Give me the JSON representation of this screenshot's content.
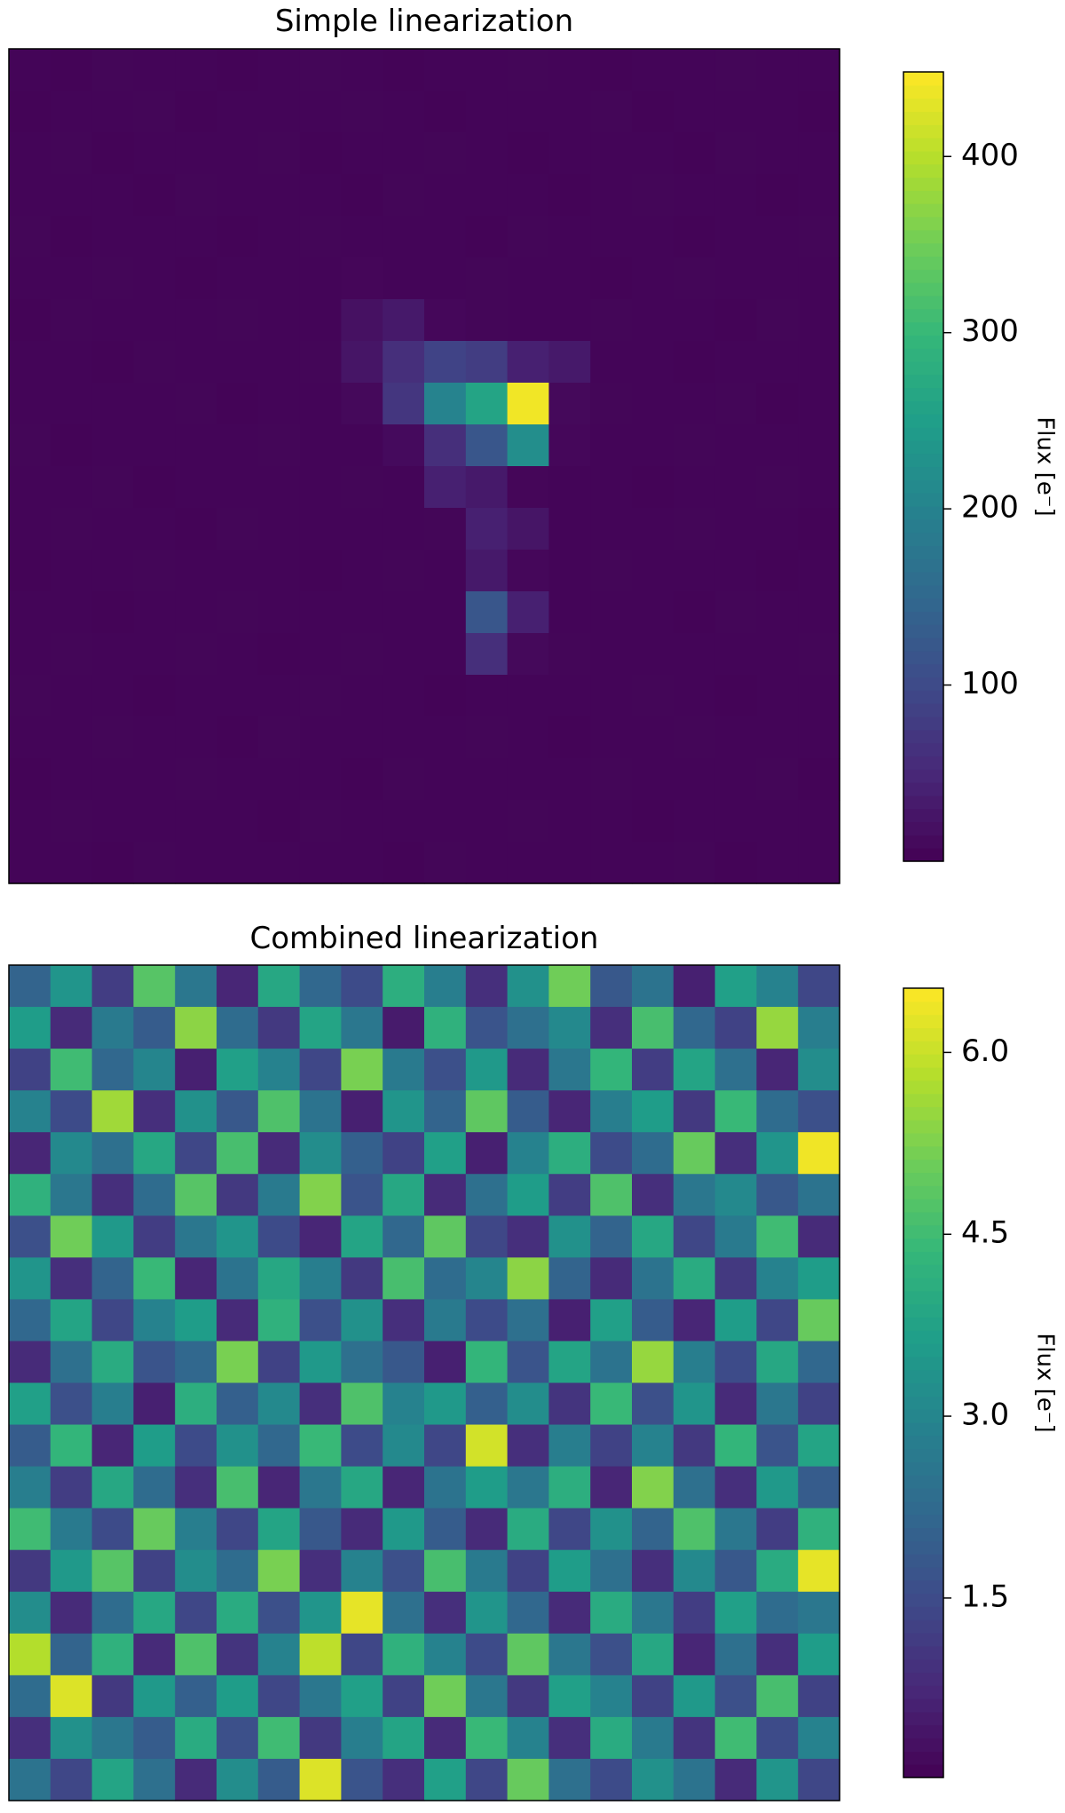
{
  "chart_data": [
    {
      "type": "heatmap",
      "title": "Simple linearization",
      "colorbar_label": "Flux [e⁻]",
      "colormap": "viridis",
      "clim": [
        0,
        448
      ],
      "cticks": [
        100,
        200,
        300,
        400
      ],
      "values": [
        [
          5,
          4,
          6,
          5,
          5,
          4,
          5,
          6,
          5,
          4,
          5,
          5,
          6,
          5,
          4,
          5,
          5,
          6,
          5,
          5
        ],
        [
          4,
          5,
          5,
          6,
          4,
          5,
          5,
          5,
          6,
          5,
          4,
          5,
          5,
          5,
          6,
          4,
          5,
          5,
          5,
          4
        ],
        [
          5,
          6,
          4,
          5,
          5,
          5,
          6,
          4,
          5,
          5,
          6,
          5,
          4,
          5,
          5,
          5,
          4,
          6,
          5,
          5
        ],
        [
          5,
          5,
          5,
          4,
          6,
          5,
          5,
          5,
          4,
          6,
          5,
          5,
          5,
          4,
          5,
          6,
          5,
          5,
          4,
          5
        ],
        [
          6,
          4,
          5,
          5,
          5,
          4,
          5,
          6,
          5,
          5,
          5,
          4,
          6,
          5,
          5,
          5,
          4,
          5,
          5,
          6
        ],
        [
          5,
          5,
          6,
          5,
          4,
          5,
          5,
          5,
          7,
          5,
          5,
          6,
          5,
          5,
          4,
          5,
          6,
          5,
          5,
          5
        ],
        [
          4,
          6,
          5,
          5,
          5,
          6,
          5,
          5,
          20,
          30,
          8,
          6,
          5,
          5,
          6,
          5,
          5,
          4,
          6,
          5
        ],
        [
          5,
          5,
          4,
          6,
          5,
          5,
          5,
          6,
          25,
          60,
          90,
          80,
          40,
          30,
          5,
          5,
          4,
          5,
          5,
          5
        ],
        [
          5,
          5,
          5,
          5,
          6,
          4,
          5,
          5,
          10,
          70,
          200,
          260,
          440,
          10,
          6,
          5,
          5,
          6,
          4,
          5
        ],
        [
          6,
          4,
          5,
          5,
          5,
          5,
          6,
          5,
          5,
          12,
          60,
          120,
          220,
          8,
          5,
          5,
          6,
          5,
          5,
          5
        ],
        [
          5,
          5,
          6,
          4,
          5,
          5,
          5,
          5,
          6,
          5,
          40,
          30,
          7,
          5,
          5,
          4,
          5,
          5,
          6,
          5
        ],
        [
          5,
          6,
          5,
          5,
          4,
          6,
          5,
          5,
          5,
          5,
          6,
          40,
          25,
          5,
          5,
          5,
          6,
          5,
          5,
          4
        ],
        [
          4,
          5,
          5,
          6,
          5,
          5,
          5,
          4,
          5,
          6,
          5,
          30,
          8,
          5,
          6,
          5,
          5,
          5,
          4,
          5
        ],
        [
          5,
          5,
          4,
          5,
          5,
          6,
          5,
          5,
          5,
          5,
          5,
          120,
          40,
          5,
          5,
          5,
          4,
          6,
          5,
          5
        ],
        [
          5,
          6,
          5,
          5,
          6,
          5,
          4,
          5,
          6,
          5,
          5,
          60,
          10,
          6,
          5,
          5,
          5,
          5,
          5,
          6
        ],
        [
          6,
          5,
          5,
          4,
          5,
          5,
          5,
          6,
          5,
          5,
          4,
          5,
          5,
          5,
          5,
          6,
          5,
          4,
          5,
          5
        ],
        [
          5,
          5,
          6,
          5,
          5,
          4,
          6,
          5,
          5,
          5,
          5,
          6,
          5,
          4,
          5,
          5,
          6,
          5,
          5,
          5
        ],
        [
          4,
          5,
          5,
          5,
          6,
          5,
          5,
          5,
          4,
          6,
          5,
          5,
          5,
          5,
          6,
          5,
          5,
          5,
          6,
          4
        ],
        [
          5,
          6,
          5,
          5,
          5,
          5,
          4,
          6,
          5,
          5,
          5,
          5,
          6,
          5,
          5,
          4,
          5,
          5,
          5,
          5
        ],
        [
          5,
          5,
          4,
          6,
          5,
          5,
          5,
          5,
          5,
          4,
          6,
          5,
          5,
          5,
          5,
          5,
          6,
          4,
          5,
          5
        ]
      ]
    },
    {
      "type": "heatmap",
      "title": "Combined linearization",
      "colorbar_label": "Flux [e⁻]",
      "colormap": "viridis",
      "clim": [
        0.02,
        6.53
      ],
      "cticks": [
        1.5,
        {
          "value": 3,
          "label": "3.0"
        },
        4.5,
        {
          "value": 6,
          "label": "6.0"
        }
      ],
      "values": [
        [
          2.1,
          3.4,
          1.2,
          4.8,
          2.6,
          0.7,
          3.9,
          2.2,
          1.5,
          4.1,
          2.8,
          0.9,
          3.3,
          5.1,
          1.8,
          2.5,
          0.6,
          3.7,
          2.9,
          1.4
        ],
        [
          3.6,
          0.8,
          2.7,
          1.9,
          5.4,
          2.3,
          1.1,
          3.8,
          2.6,
          0.5,
          4.2,
          1.7,
          2.4,
          3.1,
          0.9,
          4.6,
          2.2,
          1.3,
          5.5,
          2.8
        ],
        [
          1.3,
          4.5,
          2.2,
          3.0,
          0.6,
          3.7,
          2.9,
          1.4,
          5.2,
          2.7,
          1.6,
          3.5,
          0.8,
          2.6,
          4.3,
          1.2,
          3.8,
          2.4,
          0.7,
          3.2
        ],
        [
          2.9,
          1.5,
          5.6,
          0.9,
          3.3,
          1.8,
          4.7,
          2.5,
          0.6,
          3.4,
          2.1,
          4.9,
          1.9,
          0.7,
          2.8,
          3.6,
          1.1,
          4.4,
          2.3,
          1.6
        ],
        [
          0.7,
          3.1,
          2.4,
          3.9,
          1.4,
          4.6,
          0.8,
          3.2,
          2.0,
          1.3,
          3.7,
          0.6,
          2.9,
          4.1,
          1.5,
          2.3,
          5.0,
          0.9,
          3.4,
          6.4
        ],
        [
          4.2,
          2.6,
          0.9,
          2.3,
          4.8,
          1.1,
          2.7,
          5.3,
          1.7,
          3.9,
          0.8,
          2.4,
          3.6,
          1.2,
          4.7,
          0.9,
          2.6,
          3.1,
          1.8,
          2.5
        ],
        [
          1.6,
          5.1,
          3.5,
          1.2,
          2.6,
          3.4,
          1.5,
          0.7,
          3.8,
          2.2,
          4.9,
          1.4,
          0.9,
          3.3,
          2.1,
          3.9,
          1.4,
          2.7,
          4.5,
          0.8
        ],
        [
          3.4,
          0.9,
          2.1,
          4.4,
          0.7,
          2.5,
          3.9,
          2.8,
          1.1,
          4.6,
          2.3,
          3.0,
          5.4,
          2.1,
          0.8,
          2.5,
          4.0,
          1.1,
          2.9,
          3.6
        ],
        [
          2.2,
          3.8,
          1.4,
          2.9,
          3.6,
          0.8,
          4.2,
          1.6,
          3.3,
          0.9,
          2.7,
          1.5,
          2.4,
          0.6,
          3.7,
          1.9,
          0.7,
          3.6,
          1.4,
          5.0
        ],
        [
          0.8,
          2.4,
          4.0,
          1.7,
          2.2,
          5.2,
          1.3,
          3.5,
          2.4,
          1.8,
          0.6,
          4.3,
          1.7,
          3.8,
          2.5,
          5.5,
          2.8,
          1.5,
          3.9,
          2.2
        ],
        [
          3.7,
          1.6,
          2.8,
          0.6,
          4.1,
          2.0,
          3.1,
          0.9,
          4.7,
          2.9,
          3.5,
          2.0,
          3.2,
          1.0,
          4.4,
          1.6,
          3.4,
          0.8,
          2.6,
          1.3
        ],
        [
          1.9,
          4.3,
          0.7,
          3.6,
          1.5,
          3.3,
          2.2,
          4.4,
          1.5,
          3.1,
          1.4,
          6.1,
          0.9,
          2.8,
          1.3,
          2.9,
          1.1,
          4.3,
          1.7,
          3.8
        ],
        [
          2.8,
          1.2,
          3.9,
          2.3,
          0.9,
          4.6,
          0.7,
          2.6,
          3.9,
          0.7,
          2.5,
          3.6,
          2.6,
          4.1,
          0.7,
          5.3,
          2.4,
          0.9,
          3.5,
          1.9
        ],
        [
          4.5,
          2.7,
          1.5,
          5.0,
          2.8,
          1.4,
          3.8,
          1.8,
          0.8,
          3.5,
          1.9,
          0.8,
          4.0,
          1.4,
          3.3,
          2.1,
          4.7,
          2.6,
          1.2,
          4.2
        ],
        [
          1.1,
          3.5,
          4.8,
          1.3,
          3.2,
          2.3,
          5.2,
          0.9,
          2.9,
          1.6,
          4.6,
          2.7,
          1.3,
          3.6,
          2.4,
          0.9,
          3.1,
          1.8,
          4.0,
          6.3
        ],
        [
          3.2,
          0.8,
          2.3,
          3.9,
          1.4,
          4.0,
          1.6,
          3.4,
          6.3,
          2.4,
          0.9,
          3.4,
          2.2,
          0.8,
          4.0,
          2.6,
          1.2,
          3.7,
          2.3,
          2.6
        ],
        [
          5.8,
          2.1,
          4.2,
          0.8,
          4.7,
          1.0,
          2.9,
          5.9,
          1.4,
          4.2,
          2.9,
          1.5,
          4.9,
          2.6,
          1.6,
          3.9,
          0.7,
          2.4,
          0.9,
          3.6
        ],
        [
          2.3,
          6.2,
          1.1,
          3.5,
          2.0,
          3.6,
          1.4,
          2.6,
          3.7,
          1.3,
          5.1,
          2.6,
          1.1,
          3.7,
          2.9,
          1.3,
          3.5,
          1.6,
          4.6,
          1.3
        ],
        [
          0.9,
          3.3,
          2.6,
          1.9,
          4.0,
          1.6,
          4.5,
          1.1,
          2.8,
          3.8,
          0.8,
          4.4,
          2.9,
          0.9,
          4.0,
          2.7,
          1.0,
          4.5,
          1.5,
          2.9
        ],
        [
          2.5,
          1.4,
          3.8,
          2.4,
          0.8,
          3.2,
          1.9,
          6.2,
          1.7,
          0.9,
          3.7,
          1.4,
          5.0,
          2.4,
          1.5,
          3.3,
          2.5,
          0.8,
          3.4,
          1.4
        ]
      ]
    }
  ]
}
